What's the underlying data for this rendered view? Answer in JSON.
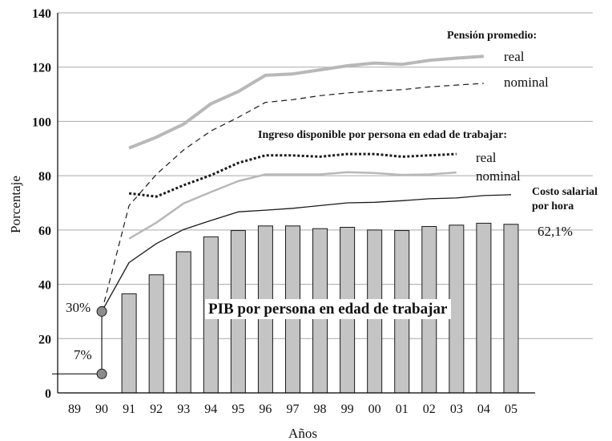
{
  "chart_data": {
    "type": "bar",
    "title": "",
    "xlabel": "Años",
    "ylabel": "Porcentaje",
    "ylim": [
      0,
      140
    ],
    "yticks": [
      0,
      20,
      40,
      60,
      80,
      100,
      120,
      140
    ],
    "grid": true,
    "categories": [
      "89",
      "90",
      "91",
      "92",
      "93",
      "94",
      "95",
      "96",
      "97",
      "98",
      "99",
      "00",
      "01",
      "02",
      "03",
      "04",
      "05"
    ],
    "bar_series": {
      "name": "PIB por persona en edad de trabajar",
      "values": [
        null,
        null,
        36.5,
        43.5,
        52,
        57.5,
        59.8,
        61.5,
        61.5,
        60.5,
        61,
        60,
        59.8,
        61.3,
        61.8,
        62.5,
        62.1
      ]
    },
    "series": [
      {
        "name": "real",
        "group": "Pensión promedio:",
        "style": "thick-gray",
        "values": [
          null,
          null,
          90.2,
          94.2,
          99,
          106.5,
          111,
          117,
          117.5,
          119,
          120.5,
          121.5,
          121,
          122.5,
          123.3,
          124,
          null
        ]
      },
      {
        "name": "nominal",
        "group": "Pensión promedio:",
        "style": "dashed-thin",
        "values": [
          null,
          30,
          69,
          80.5,
          89.5,
          96.5,
          101.5,
          107,
          108,
          109.5,
          110.5,
          111.2,
          111.7,
          112.7,
          113.4,
          114,
          null
        ]
      },
      {
        "name": "real",
        "group": "Ingreso disponible por persona en edad de trabajar:",
        "style": "dotted-bold",
        "values": [
          null,
          null,
          73.5,
          72.3,
          76.5,
          80.2,
          84.7,
          87.5,
          87.5,
          87,
          88,
          88,
          87,
          87.5,
          88,
          null,
          null
        ]
      },
      {
        "name": "nominal",
        "group": "Ingreso disponible por persona en edad de trabajar:",
        "style": "thin-gray",
        "values": [
          null,
          null,
          56.8,
          62.7,
          69.8,
          74,
          78,
          80.5,
          80.5,
          80.5,
          81.3,
          81,
          80.3,
          80.5,
          81.2,
          null,
          null
        ]
      },
      {
        "name": "Costo salarial por hora",
        "style": "thin-black",
        "values": [
          null,
          30,
          48,
          55,
          60.2,
          63.5,
          66.7,
          67.3,
          68,
          69,
          70,
          70.2,
          70.8,
          71.5,
          71.8,
          72.7,
          73
        ]
      }
    ],
    "annotations": {
      "pension_header": "Pensión promedio:",
      "pension_real": "real",
      "pension_nominal": "nominal",
      "ingreso_header": "Ingreso disponible por persona en edad de trabajar:",
      "ingreso_real": "real",
      "ingreso_nominal": "nominal",
      "costo_line1": "Costo salarial",
      "costo_line2": "por hora",
      "last_bar_label": "62,1%",
      "bar_series_label": "PIB por persona en edad de trabajar",
      "start_high_label": "30%",
      "start_low_label": "7%"
    },
    "start_markers": {
      "x": "90",
      "values": [
        30,
        7
      ]
    }
  }
}
